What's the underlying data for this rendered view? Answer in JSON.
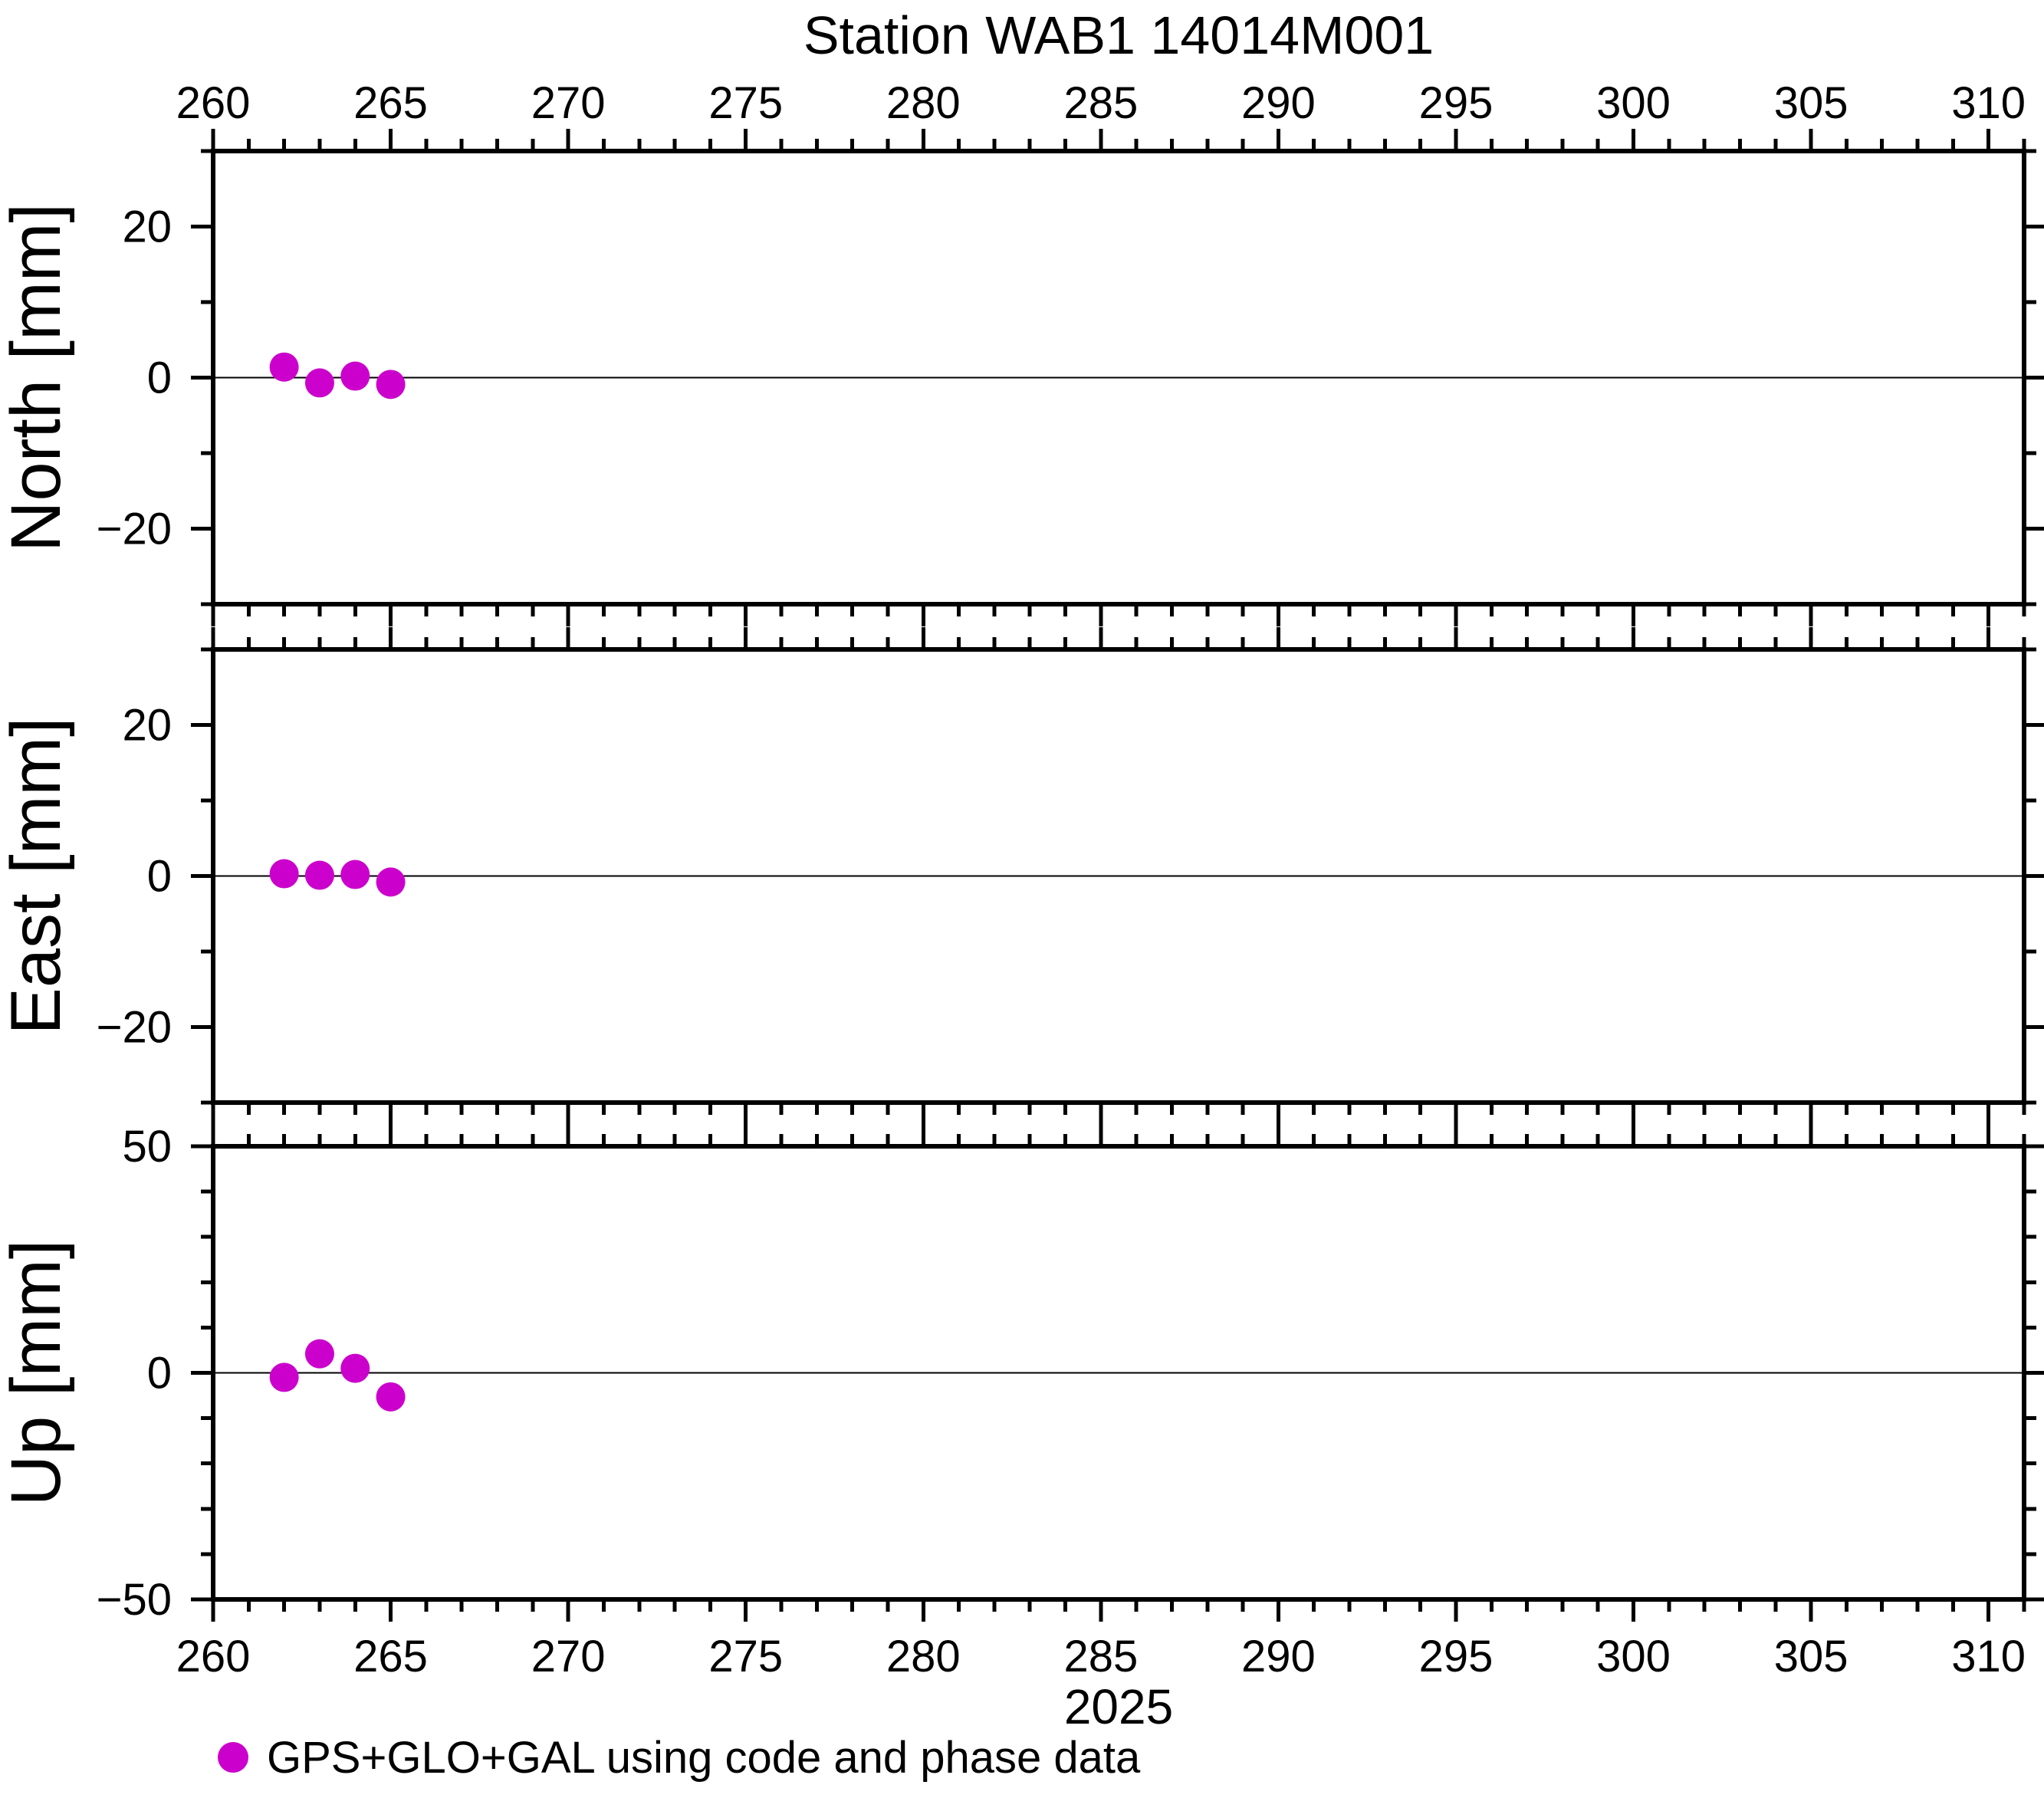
{
  "title": "Station WAB1 14014M001",
  "chart_data": {
    "type": "scatter",
    "title": "Station WAB1 14014M001",
    "x_year_label": "2025",
    "xlim": [
      260,
      311
    ],
    "x_major_ticks": [
      260,
      265,
      270,
      275,
      280,
      285,
      290,
      295,
      300,
      305,
      310
    ],
    "x_minor_step": 1,
    "x": [
      262,
      263,
      264,
      265
    ],
    "panels": [
      {
        "name": "north",
        "ylabel": "North [mm]",
        "ylim": [
          -30,
          30
        ],
        "ytick_annot": [
          -20,
          0,
          20
        ],
        "y_minor_step": 10,
        "zero_gridline": true,
        "values": [
          1.4,
          -0.7,
          0.2,
          -0.9
        ]
      },
      {
        "name": "east",
        "ylabel": "East [mm]",
        "ylim": [
          -30,
          30
        ],
        "ytick_annot": [
          -20,
          0,
          20
        ],
        "y_minor_step": 10,
        "zero_gridline": true,
        "values": [
          0.3,
          0.1,
          0.2,
          -0.8
        ]
      },
      {
        "name": "up",
        "ylabel": "Up [mm]",
        "ylim": [
          -50,
          50
        ],
        "ytick_annot": [
          -50,
          0,
          50
        ],
        "y_minor_step": 10,
        "zero_gridline": true,
        "values": [
          -1.0,
          4.2,
          1.0,
          -5.3
        ]
      }
    ],
    "point_color": "#CC00CC",
    "axis_color": "#000000",
    "legend": {
      "marker": "circle",
      "marker_color": "#CC00CC",
      "label": "GPS+GLO+GAL using code and phase data"
    },
    "grid": "horizontal line at y=0 in each panel",
    "legend_position": "below chart, left"
  }
}
